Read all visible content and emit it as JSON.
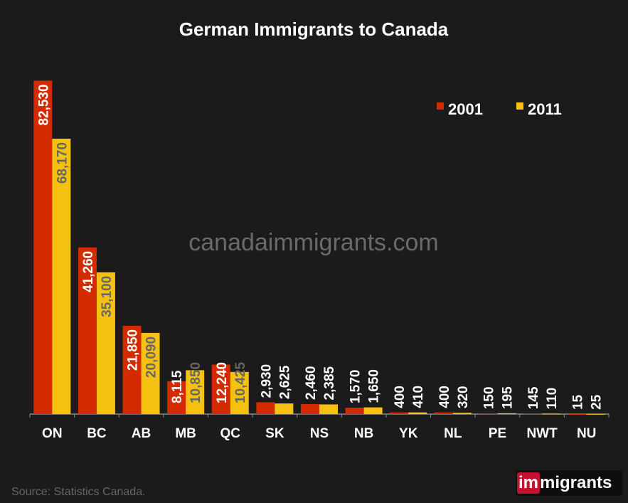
{
  "chart_data": {
    "type": "bar",
    "title": "German Immigrants to Canada",
    "categories": [
      "ON",
      "BC",
      "AB",
      "MB",
      "QC",
      "SK",
      "NS",
      "NB",
      "YK",
      "NL",
      "PE",
      "NWT",
      "NU"
    ],
    "series": [
      {
        "name": "2001",
        "color": "#d42a00",
        "values": [
          82530,
          41260,
          21850,
          8115,
          12240,
          2930,
          2460,
          1570,
          400,
          400,
          150,
          145,
          15
        ],
        "labels": [
          "82,530",
          "41,260",
          "21,850",
          "8,115",
          "12,240",
          "2,930",
          "2,460",
          "1,570",
          "400",
          "400",
          "150",
          "145",
          "15"
        ]
      },
      {
        "name": "2011",
        "color": "#f5c211",
        "values": [
          68170,
          35100,
          20090,
          10850,
          10425,
          2625,
          2385,
          1650,
          410,
          320,
          195,
          110,
          25
        ],
        "labels": [
          "68,170",
          "35,100",
          "20,090",
          "10,850",
          "10,425",
          "2,625",
          "2,385",
          "1,650",
          "410",
          "320",
          "195",
          "110",
          "25"
        ]
      }
    ],
    "ylim": [
      0,
      90000
    ],
    "grid": false,
    "legend": "top-right",
    "watermark": "canadaimmigrants.com",
    "source": "Source: Statistics Canada."
  },
  "logo": {
    "part1": "im",
    "part2": "migrants"
  }
}
